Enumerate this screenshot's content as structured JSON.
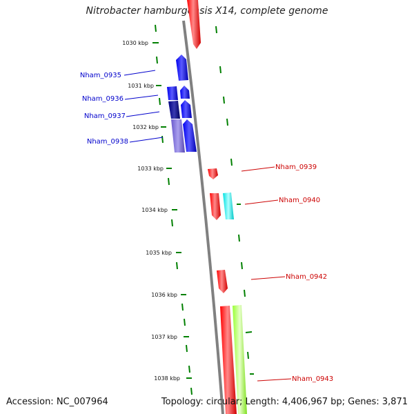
{
  "title": "Nitrobacter hamburgensis X14, complete genome",
  "footer": {
    "accession": "Accession: NC_007964",
    "stats": "Topology: circular; Length: 4,406,967 bp; Genes: 3,871"
  },
  "scale_labels": [
    "1030 kbp",
    "1031 kbp",
    "1032 kbp",
    "1033 kbp",
    "1034 kbp",
    "1035 kbp",
    "1036 kbp",
    "1037 kbp",
    "1038 kbp"
  ],
  "gene_labels": {
    "left": [
      "Nham_0935",
      "Nham_0936",
      "Nham_0937",
      "Nham_0938"
    ],
    "right": [
      "Nham_0939",
      "Nham_0940",
      "Nham_0942",
      "Nham_0943"
    ]
  },
  "colors": {
    "left_label": "#0000cc",
    "right_label": "#cc0000",
    "blue": "#0000ee",
    "navy": "#000080",
    "slate": "#6a5acd",
    "red": "#ff0000",
    "cyan": "#00ffff",
    "lime": "#99ff33",
    "backbone": "#808080",
    "tick": "#008000"
  }
}
